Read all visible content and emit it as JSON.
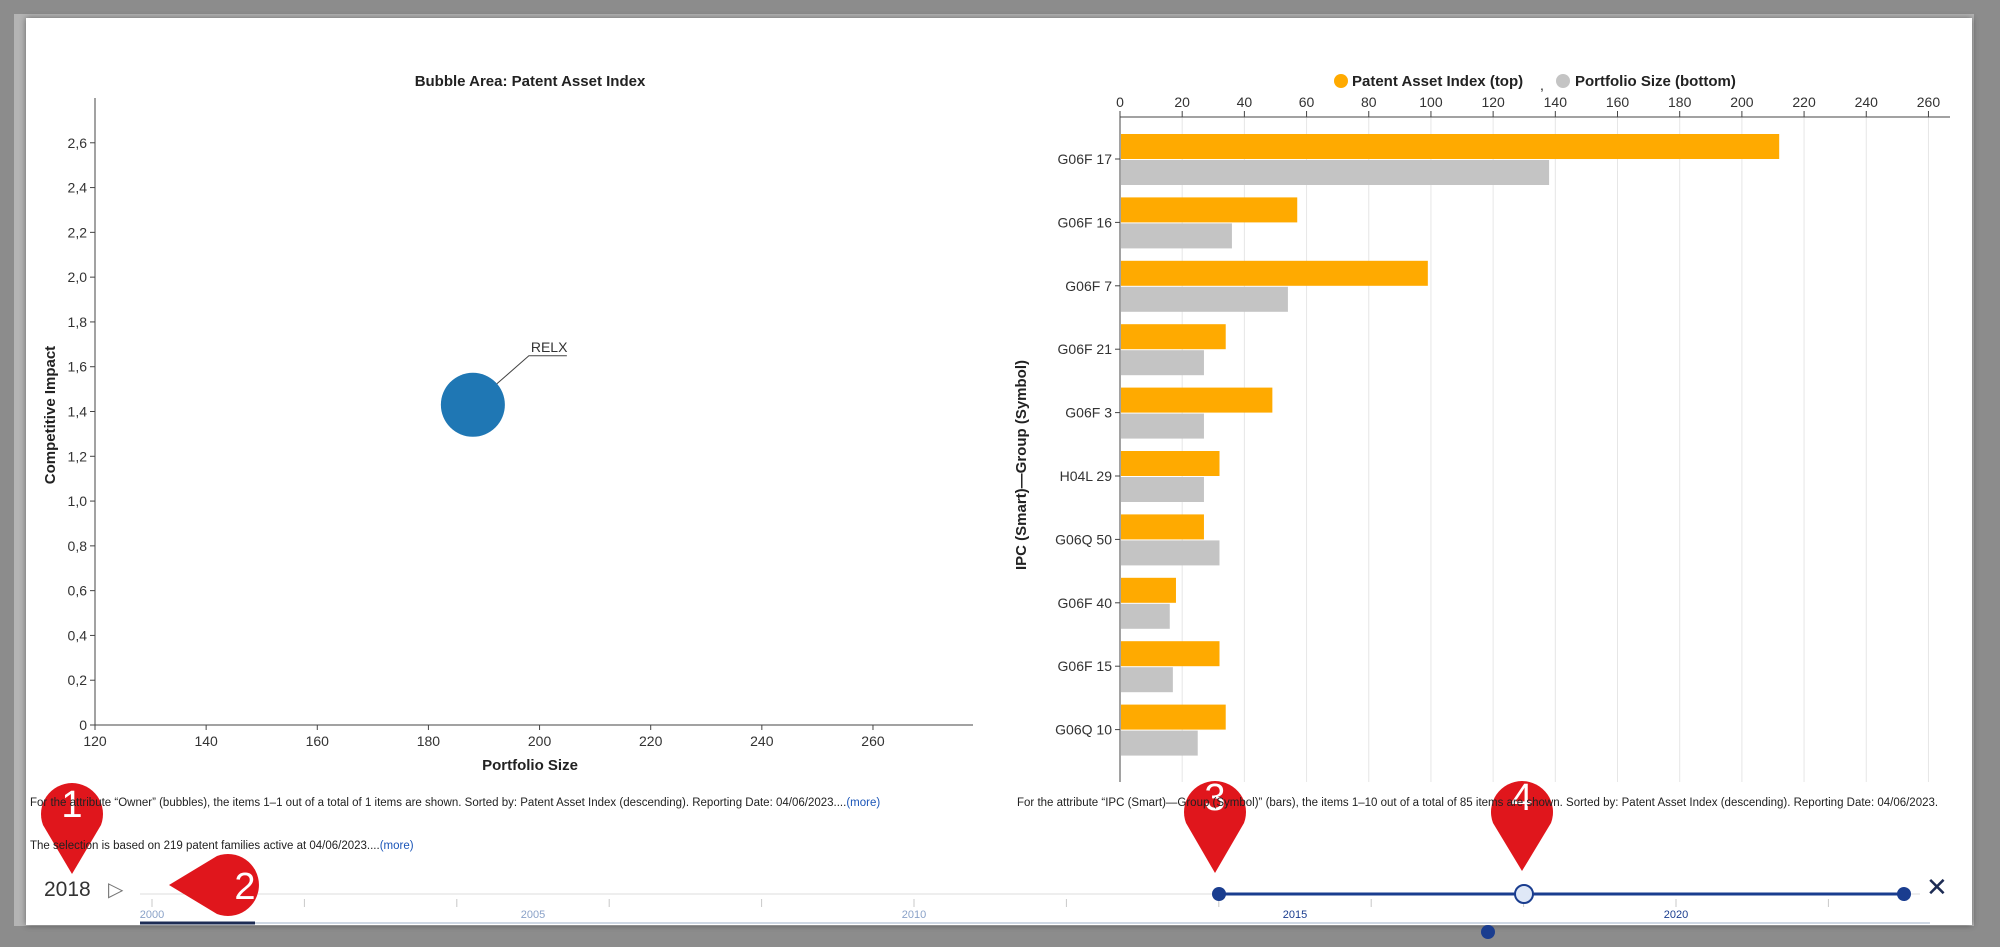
{
  "chart_data": [
    {
      "type": "scatter",
      "title": "Bubble Area:  Patent Asset Index",
      "xlabel": "Portfolio Size",
      "ylabel": "Competitive Impact",
      "xlim": [
        120,
        278
      ],
      "ylim": [
        0,
        2.8
      ],
      "x_ticks": [
        "120",
        "140",
        "160",
        "180",
        "200",
        "220",
        "240",
        "260"
      ],
      "y_ticks": [
        "0",
        "0,2",
        "0,4",
        "0,6",
        "0,8",
        "1,0",
        "1,2",
        "1,4",
        "1,6",
        "1,8",
        "2,0",
        "2,2",
        "2,4",
        "2,6"
      ],
      "points": [
        {
          "label": "RELX",
          "x": 188,
          "y": 1.43,
          "color": "#1f77b4"
        }
      ],
      "grid": false
    },
    {
      "type": "bar",
      "orientation": "horizontal",
      "ylabel": "IPC (Smart)—Group (Symbol)",
      "xlim": [
        0,
        265
      ],
      "x_ticks": [
        "0",
        "20",
        "40",
        "60",
        "80",
        "100",
        "120",
        "140",
        "160",
        "180",
        "200",
        "220",
        "240",
        "260"
      ],
      "categories": [
        "G06F  17",
        "G06F  16",
        "G06F  7",
        "G06F  21",
        "G06F  3",
        "H04L  29",
        "G06Q  50",
        "G06F  40",
        "G06F  15",
        "G06Q  10"
      ],
      "series": [
        {
          "name": "Patent Asset Index (top)",
          "color": "#ffaa00",
          "values": [
            212,
            57,
            99,
            34,
            49,
            32,
            27,
            18,
            32,
            34
          ]
        },
        {
          "name": "Portfolio Size (bottom)",
          "color": "#c4c4c4",
          "values": [
            138,
            36,
            54,
            27,
            27,
            27,
            32,
            16,
            17,
            25
          ]
        }
      ],
      "legend_position": "top",
      "legend_separator": ",",
      "grid": true
    }
  ],
  "footnotes": {
    "left_1_a": "For the attribute “Owner” (bubbles), the items 1–1 out of a total of 1 items are shown. Sorted by: Patent Asset Index (descending). Reporting Date: 04/06/2023....",
    "left_1_link": "(more)",
    "left_2_a": "The selection is based on 219 patent families active at 04/06/2023....",
    "left_2_link": "(more)",
    "right_1": "For the attribute “IPC (Smart)—Group (Symbol)” (bars), the items 1–10 out of a total of 85 items are shown. Sorted by: Patent Asset Index (descending). Reporting Date: 04/06/2023."
  },
  "timeline": {
    "current_year": "2018",
    "play_icon": "play-icon",
    "close_icon": "close-icon",
    "year_labels": [
      "2000",
      "2005",
      "2010",
      "2015",
      "2020"
    ],
    "range_start_year": 2014,
    "range_end_year": 2022,
    "current_value_year": 2018
  },
  "callouts": [
    "1",
    "2",
    "3",
    "4"
  ],
  "colors": {
    "accent": "#1a3d8f",
    "callout": "#e0161c",
    "bubble": "#1f77b4",
    "bar_primary": "#ffaa00",
    "bar_secondary": "#c4c4c4"
  }
}
